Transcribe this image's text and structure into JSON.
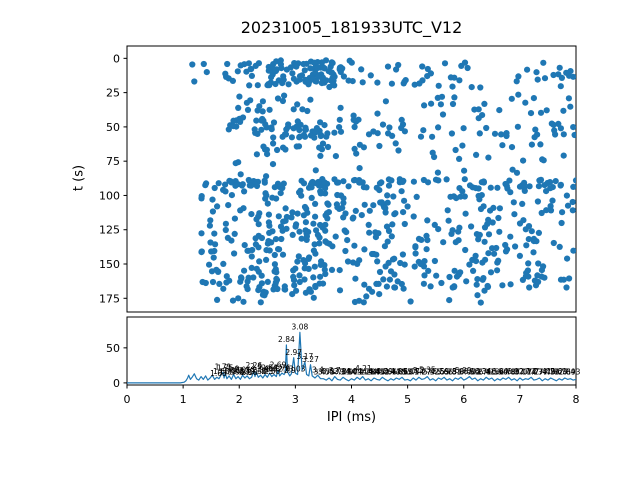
{
  "figure": {
    "title": "20231005_181933UTC_V12",
    "background": "#ffffff",
    "accent_color": "#1f77b4",
    "spine_color": "#000000"
  },
  "chart_data": [
    {
      "type": "scatter",
      "title": "20231005_181933UTC_V12",
      "xlabel": "",
      "ylabel": "t (s)",
      "xlim": [
        0,
        8
      ],
      "ylim": [
        185,
        -9
      ],
      "y_axis_inverted": true,
      "y_ticks": [
        0,
        25,
        50,
        75,
        100,
        125,
        150,
        175
      ],
      "grid": false,
      "marker_color": "#1f77b4",
      "point_clusters": [
        {
          "x0": 1.75,
          "x1": 2.6,
          "t0": 2,
          "t1": 20,
          "n": 22
        },
        {
          "x0": 2.5,
          "x1": 3.7,
          "t0": 1,
          "t1": 19,
          "n": 78
        },
        {
          "x0": 3.6,
          "x1": 4.4,
          "t0": 1,
          "t1": 21,
          "n": 18
        },
        {
          "x0": 4.4,
          "x1": 6.3,
          "t0": 2,
          "t1": 22,
          "n": 26
        },
        {
          "x0": 6.9,
          "x1": 8.0,
          "t0": 2,
          "t1": 22,
          "n": 16
        },
        {
          "x0": 1.15,
          "x1": 1.8,
          "t0": 4,
          "t1": 18,
          "n": 5
        },
        {
          "x0": 1.9,
          "x1": 8.0,
          "t0": 26,
          "t1": 42,
          "n": 45
        },
        {
          "x0": 1.8,
          "x1": 2.2,
          "t0": 42,
          "t1": 52,
          "n": 9
        },
        {
          "x0": 2.2,
          "x1": 3.7,
          "t0": 44,
          "t1": 58,
          "n": 48
        },
        {
          "x0": 3.7,
          "x1": 5.1,
          "t0": 44,
          "t1": 58,
          "n": 18
        },
        {
          "x0": 5.1,
          "x1": 8.0,
          "t0": 43,
          "t1": 58,
          "n": 26
        },
        {
          "x0": 2.4,
          "x1": 4.3,
          "t0": 62,
          "t1": 67,
          "n": 16
        },
        {
          "x0": 4.3,
          "x1": 8.0,
          "t0": 60,
          "t1": 75,
          "n": 18
        },
        {
          "x0": 1.9,
          "x1": 4.3,
          "t0": 68,
          "t1": 78,
          "n": 8
        },
        {
          "x0": 2.0,
          "x1": 8.0,
          "t0": 79,
          "t1": 87,
          "n": 8
        },
        {
          "x0": 1.3,
          "x1": 8.0,
          "t0": 88,
          "t1": 95,
          "n": 115
        },
        {
          "x0": 1.3,
          "x1": 2.2,
          "t0": 95,
          "t1": 170,
          "n": 55
        },
        {
          "x0": 2.2,
          "x1": 3.6,
          "t0": 95,
          "t1": 172,
          "n": 150
        },
        {
          "x0": 3.6,
          "x1": 5.0,
          "t0": 96,
          "t1": 168,
          "n": 85
        },
        {
          "x0": 5.0,
          "x1": 6.6,
          "t0": 96,
          "t1": 168,
          "n": 88
        },
        {
          "x0": 6.6,
          "x1": 8.0,
          "t0": 96,
          "t1": 168,
          "n": 66
        },
        {
          "x0": 1.5,
          "x1": 6.5,
          "t0": 168,
          "t1": 179,
          "n": 24
        }
      ]
    },
    {
      "type": "line",
      "title": "",
      "xlabel": "IPI (ms)",
      "ylabel": "",
      "xlim": [
        0,
        8
      ],
      "ylim": [
        -3,
        94
      ],
      "x_ticks": [
        0,
        1,
        2,
        3,
        4,
        5,
        6,
        7,
        8
      ],
      "y_ticks": [
        0,
        50
      ],
      "grid": false,
      "line_color": "#1f77b4",
      "curve": [
        [
          0,
          0
        ],
        [
          0.6,
          0
        ],
        [
          0.95,
          0
        ],
        [
          1.02,
          1
        ],
        [
          1.05,
          3
        ],
        [
          1.08,
          7
        ],
        [
          1.1,
          11
        ],
        [
          1.13,
          5
        ],
        [
          1.16,
          8
        ],
        [
          1.2,
          13
        ],
        [
          1.24,
          6
        ],
        [
          1.28,
          4
        ],
        [
          1.32,
          9
        ],
        [
          1.36,
          5
        ],
        [
          1.4,
          10
        ],
        [
          1.44,
          4
        ],
        [
          1.48,
          7
        ],
        [
          1.52,
          11
        ],
        [
          1.56,
          5
        ],
        [
          1.6,
          8
        ],
        [
          1.64,
          6
        ],
        [
          1.68,
          12
        ],
        [
          1.71,
          15
        ],
        [
          1.73,
          7
        ],
        [
          1.75,
          14
        ],
        [
          1.78,
          6
        ],
        [
          1.82,
          10
        ],
        [
          1.86,
          5
        ],
        [
          1.9,
          12
        ],
        [
          1.94,
          6
        ],
        [
          1.98,
          9
        ],
        [
          2.02,
          5
        ],
        [
          2.06,
          11
        ],
        [
          2.1,
          7
        ],
        [
          2.14,
          10
        ],
        [
          2.18,
          6
        ],
        [
          2.22,
          8
        ],
        [
          2.26,
          17
        ],
        [
          2.28,
          9
        ],
        [
          2.3,
          16
        ],
        [
          2.34,
          8
        ],
        [
          2.38,
          11
        ],
        [
          2.42,
          7
        ],
        [
          2.46,
          12
        ],
        [
          2.5,
          8
        ],
        [
          2.54,
          14
        ],
        [
          2.58,
          9
        ],
        [
          2.62,
          12
        ],
        [
          2.66,
          9
        ],
        [
          2.69,
          18
        ],
        [
          2.72,
          10
        ],
        [
          2.76,
          14
        ],
        [
          2.8,
          12
        ],
        [
          2.82,
          15
        ],
        [
          2.84,
          54
        ],
        [
          2.86,
          16
        ],
        [
          2.9,
          10
        ],
        [
          2.93,
          13
        ],
        [
          2.97,
          36
        ],
        [
          3.0,
          14
        ],
        [
          3.04,
          12
        ],
        [
          3.08,
          72
        ],
        [
          3.12,
          18
        ],
        [
          3.17,
          30
        ],
        [
          3.2,
          12
        ],
        [
          3.24,
          10
        ],
        [
          3.27,
          26
        ],
        [
          3.3,
          10
        ],
        [
          3.35,
          7
        ],
        [
          3.4,
          11
        ],
        [
          3.45,
          6
        ],
        [
          3.5,
          6
        ],
        [
          3.55,
          4
        ],
        [
          3.6,
          7
        ],
        [
          3.65,
          3
        ],
        [
          3.7,
          9
        ],
        [
          3.75,
          5
        ],
        [
          3.8,
          4
        ],
        [
          3.85,
          8
        ],
        [
          3.9,
          5
        ],
        [
          3.95,
          3
        ],
        [
          4.0,
          6
        ],
        [
          4.05,
          4
        ],
        [
          4.1,
          8
        ],
        [
          4.15,
          5
        ],
        [
          4.2,
          9
        ],
        [
          4.25,
          4
        ],
        [
          4.3,
          6
        ],
        [
          4.35,
          3
        ],
        [
          4.4,
          7
        ],
        [
          4.45,
          5
        ],
        [
          4.5,
          4
        ],
        [
          4.55,
          8
        ],
        [
          4.6,
          5
        ],
        [
          4.65,
          3
        ],
        [
          4.7,
          6
        ],
        [
          4.75,
          4
        ],
        [
          4.8,
          7
        ],
        [
          4.85,
          5
        ],
        [
          4.9,
          8
        ],
        [
          4.95,
          4
        ],
        [
          5.0,
          5
        ],
        [
          5.05,
          3
        ],
        [
          5.1,
          7
        ],
        [
          5.15,
          4
        ],
        [
          5.2,
          8
        ],
        [
          5.25,
          5
        ],
        [
          5.3,
          6
        ],
        [
          5.35,
          9
        ],
        [
          5.4,
          4
        ],
        [
          5.45,
          6
        ],
        [
          5.5,
          3
        ],
        [
          5.55,
          7
        ],
        [
          5.6,
          5
        ],
        [
          5.65,
          8
        ],
        [
          5.7,
          4
        ],
        [
          5.75,
          6
        ],
        [
          5.8,
          3
        ],
        [
          5.85,
          7
        ],
        [
          5.9,
          5
        ],
        [
          5.95,
          8
        ],
        [
          6.0,
          4
        ],
        [
          6.05,
          6
        ],
        [
          6.1,
          9
        ],
        [
          6.15,
          5
        ],
        [
          6.2,
          7
        ],
        [
          6.25,
          3
        ],
        [
          6.3,
          6
        ],
        [
          6.35,
          4
        ],
        [
          6.4,
          8
        ],
        [
          6.45,
          5
        ],
        [
          6.5,
          7
        ],
        [
          6.55,
          3
        ],
        [
          6.6,
          6
        ],
        [
          6.65,
          4
        ],
        [
          6.7,
          7
        ],
        [
          6.75,
          5
        ],
        [
          6.8,
          8
        ],
        [
          6.85,
          4
        ],
        [
          6.9,
          6
        ],
        [
          6.95,
          3
        ],
        [
          7.0,
          7
        ],
        [
          7.05,
          4
        ],
        [
          7.1,
          6
        ],
        [
          7.15,
          5
        ],
        [
          7.2,
          8
        ],
        [
          7.25,
          4
        ],
        [
          7.3,
          5
        ],
        [
          7.35,
          7
        ],
        [
          7.4,
          3
        ],
        [
          7.45,
          6
        ],
        [
          7.5,
          4
        ],
        [
          7.55,
          7
        ],
        [
          7.6,
          5
        ],
        [
          7.65,
          3
        ],
        [
          7.7,
          6
        ],
        [
          7.75,
          4
        ],
        [
          7.8,
          7
        ],
        [
          7.85,
          5
        ],
        [
          7.9,
          6
        ],
        [
          7.95,
          4
        ],
        [
          8.0,
          5
        ]
      ],
      "peak_labels": [
        {
          "x": 1.63,
          "y": 10,
          "text": "1.63"
        },
        {
          "x": 1.68,
          "y": 13,
          "text": "1.68"
        },
        {
          "x": 1.71,
          "y": 19,
          "text": "1.71"
        },
        {
          "x": 1.75,
          "y": 18,
          "text": "1.75"
        },
        {
          "x": 1.79,
          "y": 12,
          "text": "1.79"
        },
        {
          "x": 1.86,
          "y": 14,
          "text": "1.86"
        },
        {
          "x": 1.9,
          "y": 16,
          "text": "1.9"
        },
        {
          "x": 1.95,
          "y": 12,
          "text": "1.95"
        },
        {
          "x": 2.02,
          "y": 13,
          "text": "2.02"
        },
        {
          "x": 2.06,
          "y": 15,
          "text": "2.06"
        },
        {
          "x": 2.1,
          "y": 12,
          "text": "2.1"
        },
        {
          "x": 2.14,
          "y": 14,
          "text": "2.14"
        },
        {
          "x": 2.18,
          "y": 11,
          "text": "2.18"
        },
        {
          "x": 2.26,
          "y": 21,
          "text": "2.26"
        },
        {
          "x": 2.3,
          "y": 20,
          "text": "2.3"
        },
        {
          "x": 2.34,
          "y": 13,
          "text": "2.34"
        },
        {
          "x": 2.38,
          "y": 15,
          "text": "2.38"
        },
        {
          "x": 2.46,
          "y": 16,
          "text": "2.46"
        },
        {
          "x": 2.5,
          "y": 13,
          "text": "2.5"
        },
        {
          "x": 2.54,
          "y": 18,
          "text": "2.54"
        },
        {
          "x": 2.58,
          "y": 13,
          "text": "2.58"
        },
        {
          "x": 2.62,
          "y": 16,
          "text": "2.62"
        },
        {
          "x": 2.69,
          "y": 22,
          "text": "2.69"
        },
        {
          "x": 2.76,
          "y": 18,
          "text": "2.76"
        },
        {
          "x": 2.8,
          "y": 16,
          "text": "2.8"
        },
        {
          "x": 2.84,
          "y": 58,
          "text": "2.84"
        },
        {
          "x": 2.9,
          "y": 14,
          "text": "2.9"
        },
        {
          "x": 2.97,
          "y": 40,
          "text": "2.97"
        },
        {
          "x": 3.03,
          "y": 16,
          "text": "3.03"
        },
        {
          "x": 3.08,
          "y": 76,
          "text": "3.08"
        },
        {
          "x": 3.17,
          "y": 34,
          "text": "3.17"
        },
        {
          "x": 3.27,
          "y": 30,
          "text": "3.27"
        },
        {
          "x": 3.4,
          "y": 15,
          "text": "3.4"
        },
        {
          "x": 3.47,
          "y": 12,
          "text": "3.47"
        },
        {
          "x": 3.55,
          "y": 12,
          "text": "3.55"
        },
        {
          "x": 3.62,
          "y": 13,
          "text": "3.62"
        },
        {
          "x": 3.7,
          "y": 14,
          "text": "3.7"
        },
        {
          "x": 3.77,
          "y": 12,
          "text": "3.77"
        },
        {
          "x": 3.84,
          "y": 13,
          "text": "3.84"
        },
        {
          "x": 3.9,
          "y": 12,
          "text": "3.9"
        },
        {
          "x": 3.97,
          "y": 12,
          "text": "3.97"
        },
        {
          "x": 4.04,
          "y": 13,
          "text": "4.04"
        },
        {
          "x": 4.1,
          "y": 12,
          "text": "4.1"
        },
        {
          "x": 4.17,
          "y": 12,
          "text": "4.17"
        },
        {
          "x": 4.21,
          "y": 17,
          "text": "4.21"
        },
        {
          "x": 4.28,
          "y": 12,
          "text": "4.28"
        },
        {
          "x": 4.34,
          "y": 12,
          "text": "4.34"
        },
        {
          "x": 4.4,
          "y": 13,
          "text": "4.4"
        },
        {
          "x": 4.45,
          "y": 12,
          "text": "4.45"
        },
        {
          "x": 4.52,
          "y": 12,
          "text": "4.52"
        },
        {
          "x": 4.59,
          "y": 13,
          "text": "4.59"
        },
        {
          "x": 4.66,
          "y": 12,
          "text": "4.66"
        },
        {
          "x": 4.73,
          "y": 12,
          "text": "4.73"
        },
        {
          "x": 4.8,
          "y": 13,
          "text": "4.8"
        },
        {
          "x": 4.86,
          "y": 12,
          "text": "4.86"
        },
        {
          "x": 4.93,
          "y": 12,
          "text": "4.93"
        },
        {
          "x": 5.0,
          "y": 12,
          "text": "5.0"
        },
        {
          "x": 5.07,
          "y": 13,
          "text": "5.07"
        },
        {
          "x": 5.14,
          "y": 12,
          "text": "5.14"
        },
        {
          "x": 5.2,
          "y": 14,
          "text": "5.2"
        },
        {
          "x": 5.27,
          "y": 12,
          "text": "5.27"
        },
        {
          "x": 5.35,
          "y": 15,
          "text": "5.35"
        },
        {
          "x": 5.42,
          "y": 12,
          "text": "5.42"
        },
        {
          "x": 5.5,
          "y": 12,
          "text": "5.5"
        },
        {
          "x": 5.59,
          "y": 13,
          "text": "5.59"
        },
        {
          "x": 5.66,
          "y": 12,
          "text": "5.66"
        },
        {
          "x": 5.73,
          "y": 12,
          "text": "5.73"
        },
        {
          "x": 5.81,
          "y": 12,
          "text": "5.81"
        },
        {
          "x": 5.9,
          "y": 13,
          "text": "5.9"
        },
        {
          "x": 5.99,
          "y": 14,
          "text": "5.99"
        },
        {
          "x": 6.07,
          "y": 12,
          "text": "6.07"
        },
        {
          "x": 6.14,
          "y": 13,
          "text": "6.14"
        },
        {
          "x": 6.2,
          "y": 12,
          "text": "6.2"
        },
        {
          "x": 6.27,
          "y": 12,
          "text": "6.27"
        },
        {
          "x": 6.34,
          "y": 13,
          "text": "6.34"
        },
        {
          "x": 6.41,
          "y": 12,
          "text": "6.41"
        },
        {
          "x": 6.5,
          "y": 12,
          "text": "6.5"
        },
        {
          "x": 6.57,
          "y": 12,
          "text": "6.57"
        },
        {
          "x": 6.64,
          "y": 13,
          "text": "6.64"
        },
        {
          "x": 6.7,
          "y": 12,
          "text": "6.7"
        },
        {
          "x": 6.78,
          "y": 12,
          "text": "6.78"
        },
        {
          "x": 6.85,
          "y": 12,
          "text": "6.85"
        },
        {
          "x": 6.92,
          "y": 13,
          "text": "6.92"
        },
        {
          "x": 7.0,
          "y": 12,
          "text": "7.0"
        },
        {
          "x": 7.07,
          "y": 12,
          "text": "7.07"
        },
        {
          "x": 7.14,
          "y": 12,
          "text": "7.14"
        },
        {
          "x": 7.2,
          "y": 13,
          "text": "7.2"
        },
        {
          "x": 7.27,
          "y": 12,
          "text": "7.27"
        },
        {
          "x": 7.34,
          "y": 12,
          "text": "7.34"
        },
        {
          "x": 7.41,
          "y": 13,
          "text": "7.41"
        },
        {
          "x": 7.48,
          "y": 12,
          "text": "7.48"
        },
        {
          "x": 7.56,
          "y": 12,
          "text": "7.56"
        },
        {
          "x": 7.62,
          "y": 12,
          "text": "7.62"
        },
        {
          "x": 7.69,
          "y": 13,
          "text": "7.69"
        },
        {
          "x": 7.76,
          "y": 12,
          "text": "7.76"
        },
        {
          "x": 7.84,
          "y": 12,
          "text": "7.84"
        },
        {
          "x": 7.93,
          "y": 12,
          "text": "7.93"
        }
      ]
    }
  ]
}
